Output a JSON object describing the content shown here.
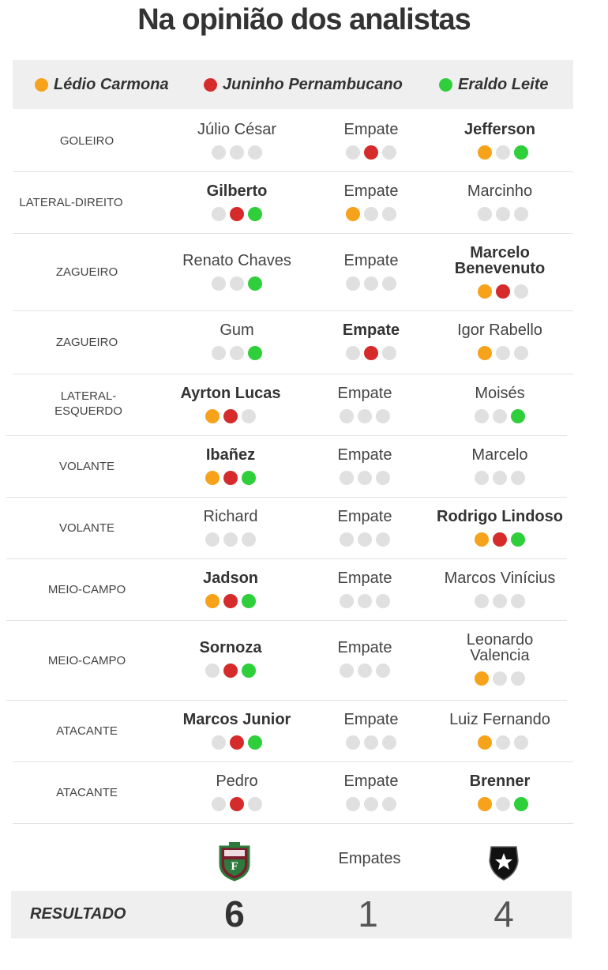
{
  "title": "Na opinião dos analistas",
  "legend": [
    {
      "name": "Lédio Carmona",
      "color": "#f7a21b"
    },
    {
      "name": "Juninho Pernambucano",
      "color": "#d62b2b"
    },
    {
      "name": "Eraldo Leite",
      "color": "#2fcf3b"
    }
  ],
  "rows": [
    {
      "position": "GOLEIRO",
      "left": "Júlio César",
      "left_dots": [
        "",
        "",
        ""
      ],
      "middle": "Empate",
      "middle_dots": [
        "",
        "r",
        ""
      ],
      "right": "Jefferson",
      "right_dots": [
        "o",
        "",
        "g"
      ],
      "winner": "right"
    },
    {
      "position": "LATERAL-DIREITO",
      "left": "Gilberto",
      "left_dots": [
        "",
        "r",
        "g"
      ],
      "middle": "Empate",
      "middle_dots": [
        "o",
        "",
        ""
      ],
      "right": "Marcinho",
      "right_dots": [
        "",
        "",
        ""
      ],
      "winner": "left"
    },
    {
      "position": "ZAGUEIRO",
      "left": "Renato Chaves",
      "left_dots": [
        "",
        "",
        "g"
      ],
      "middle": "Empate",
      "middle_dots": [
        "",
        "",
        ""
      ],
      "right": "Marcelo Benevenuto",
      "right_dots": [
        "o",
        "r",
        ""
      ],
      "winner": "right"
    },
    {
      "position": "ZAGUEIRO",
      "left": "Gum",
      "left_dots": [
        "",
        "",
        "g"
      ],
      "middle": "Empate",
      "middle_dots": [
        "",
        "r",
        ""
      ],
      "right": "Igor Rabello",
      "right_dots": [
        "o",
        "",
        ""
      ],
      "winner": "middle"
    },
    {
      "position": "LATERAL-ESQUERDO",
      "left": "Ayrton Lucas",
      "left_dots": [
        "o",
        "r",
        ""
      ],
      "middle": "Empate",
      "middle_dots": [
        "",
        "",
        ""
      ],
      "right": "Moisés",
      "right_dots": [
        "",
        "",
        "g"
      ],
      "winner": "left"
    },
    {
      "position": "VOLANTE",
      "left": "Ibañez",
      "left_dots": [
        "o",
        "r",
        "g"
      ],
      "middle": "Empate",
      "middle_dots": [
        "",
        "",
        ""
      ],
      "right": "Marcelo",
      "right_dots": [
        "",
        "",
        ""
      ],
      "winner": "left"
    },
    {
      "position": "VOLANTE",
      "left": "Richard",
      "left_dots": [
        "",
        "",
        ""
      ],
      "middle": "Empate",
      "middle_dots": [
        "",
        "",
        ""
      ],
      "right": "Rodrigo Lindoso",
      "right_dots": [
        "o",
        "r",
        "g"
      ],
      "winner": "right"
    },
    {
      "position": "MEIO-CAMPO",
      "left": "Jadson",
      "left_dots": [
        "o",
        "r",
        "g"
      ],
      "middle": "Empate",
      "middle_dots": [
        "",
        "",
        ""
      ],
      "right": "Marcos Vinícius",
      "right_dots": [
        "",
        "",
        ""
      ],
      "winner": "left"
    },
    {
      "position": "MEIO-CAMPO",
      "left": "Sornoza",
      "left_dots": [
        "",
        "r",
        "g"
      ],
      "middle": "Empate",
      "middle_dots": [
        "",
        "",
        ""
      ],
      "right": "Leonardo Valencia",
      "right_dots": [
        "o",
        "",
        ""
      ],
      "winner": "left"
    },
    {
      "position": "ATACANTE",
      "left": "Marcos Junior",
      "left_dots": [
        "",
        "r",
        "g"
      ],
      "middle": "Empate",
      "middle_dots": [
        "",
        "",
        ""
      ],
      "right": "Luiz Fernando",
      "right_dots": [
        "o",
        "",
        ""
      ],
      "winner": "left"
    },
    {
      "position": "ATACANTE",
      "left": "Pedro",
      "left_dots": [
        "",
        "r",
        ""
      ],
      "middle": "Empate",
      "middle_dots": [
        "",
        "",
        ""
      ],
      "right": "Brenner",
      "right_dots": [
        "o",
        "",
        "g"
      ],
      "winner": "right"
    }
  ],
  "footer": {
    "left_crest_icon": "fluminense-crest-icon",
    "middle_label": "Empates",
    "right_crest_icon": "botafogo-crest-icon"
  },
  "result": {
    "label": "RESULTADO",
    "left": "6",
    "middle": "1",
    "right": "4"
  }
}
